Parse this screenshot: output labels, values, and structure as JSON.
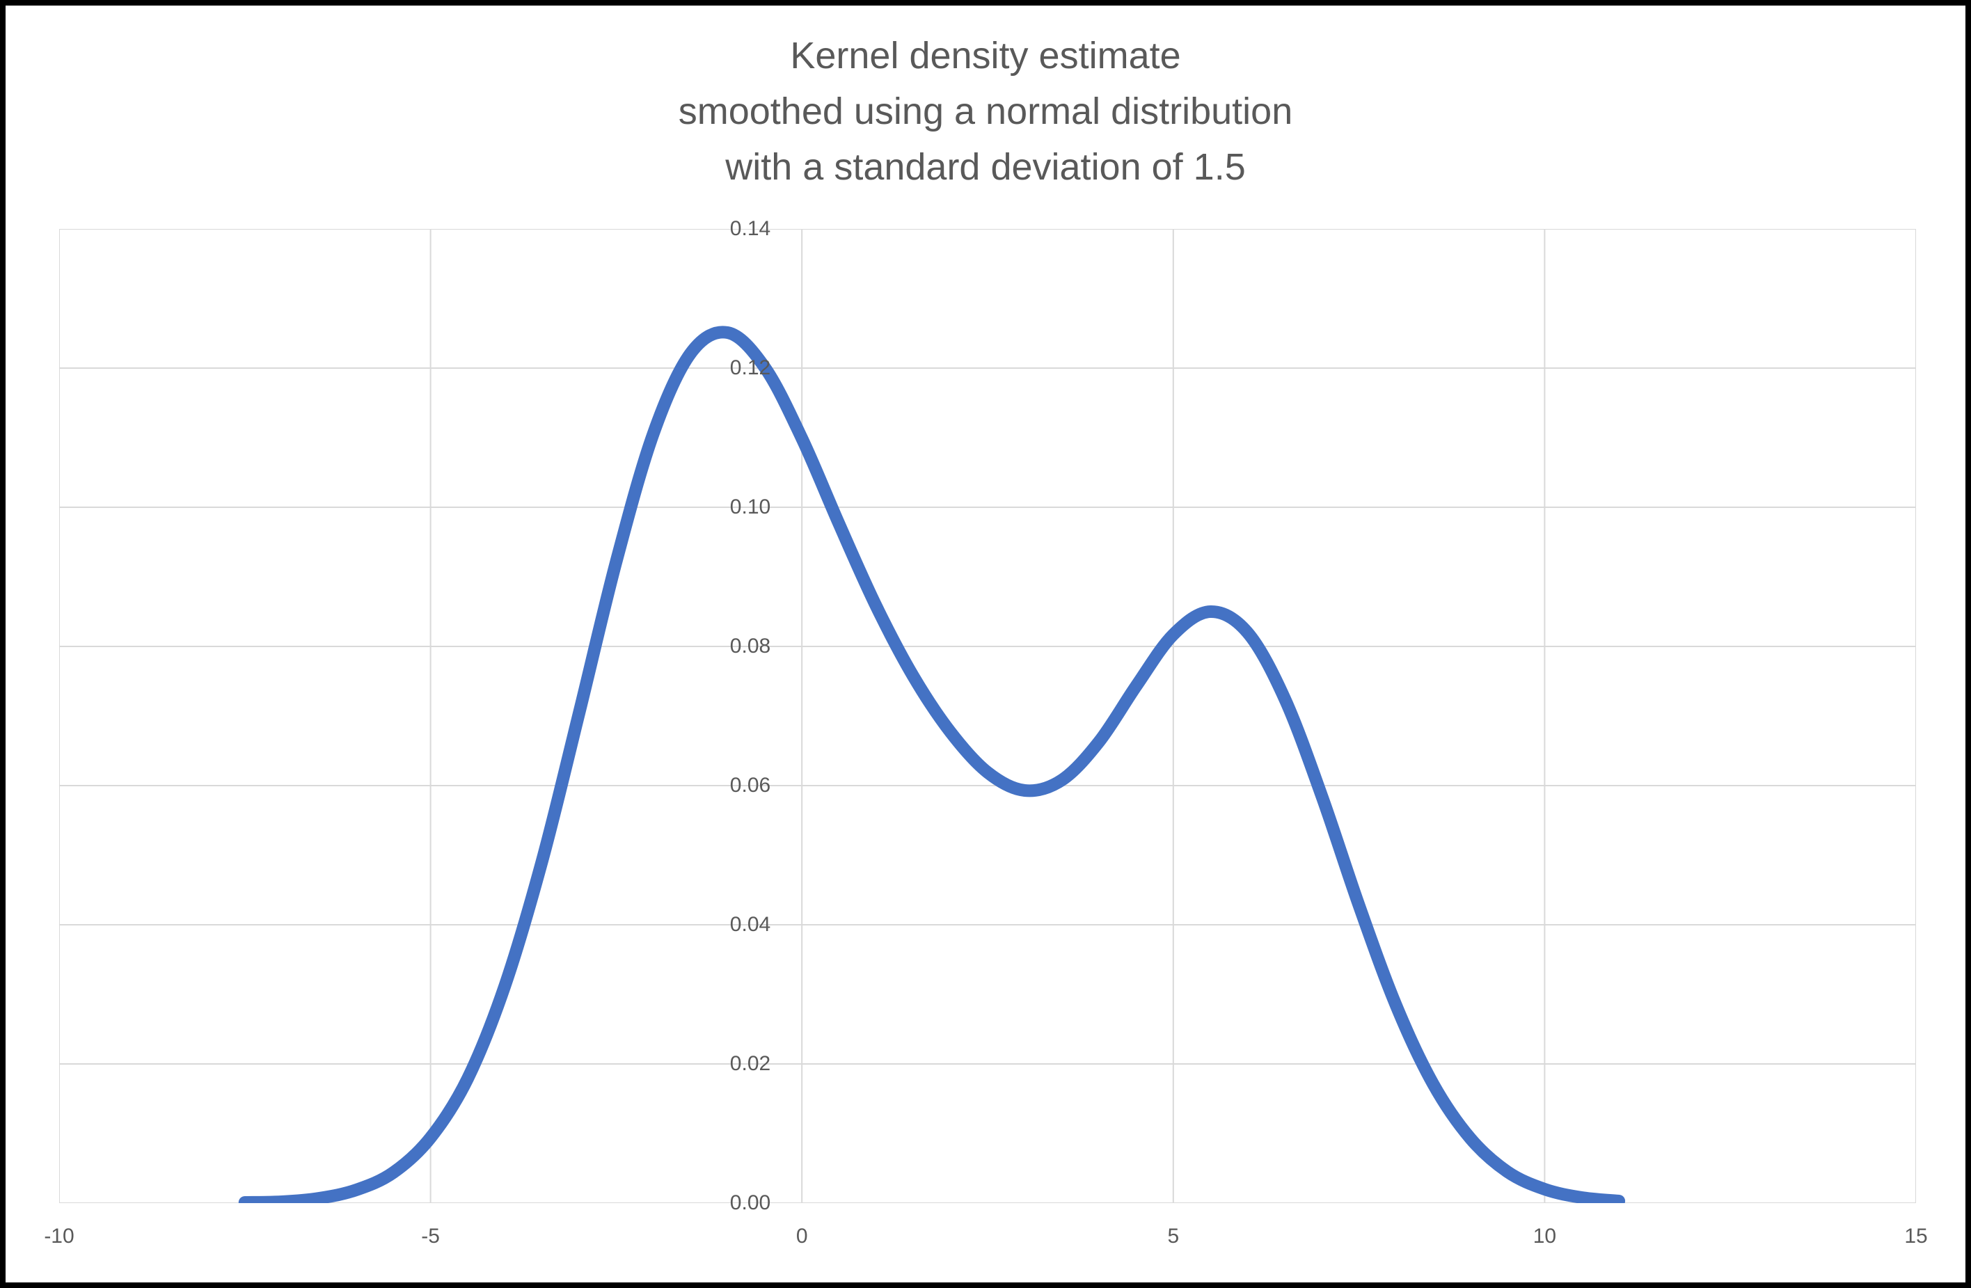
{
  "title": {
    "lines": [
      "Kernel density estimate",
      "smoothed using a normal distribution",
      "with a standard deviation of 1.5"
    ]
  },
  "chart_data": {
    "type": "line",
    "title": "Kernel density estimate smoothed using a normal distribution with a standard deviation of 1.5",
    "xlabel": "",
    "ylabel": "",
    "xlim": [
      -10,
      15
    ],
    "ylim": [
      0,
      0.14
    ],
    "grid": true,
    "legend": "none",
    "x": [
      -7.5,
      -7,
      -6.5,
      -6,
      -5.5,
      -5,
      -4.5,
      -4,
      -3.5,
      -3,
      -2.5,
      -2,
      -1.5,
      -1,
      -0.5,
      0,
      0.5,
      1,
      1.5,
      2,
      2.5,
      3,
      3.5,
      4,
      4.5,
      5,
      5.5,
      6,
      6.5,
      7,
      7.5,
      8,
      8.5,
      9,
      9.5,
      10,
      10.5,
      11
    ],
    "series": [
      {
        "name": "Kernel density estimate",
        "values": [
          0.0001,
          0.0002,
          0.0007,
          0.0019,
          0.0044,
          0.0094,
          0.0179,
          0.0312,
          0.0491,
          0.0704,
          0.0922,
          0.1106,
          0.1221,
          0.1251,
          0.1201,
          0.1099,
          0.0976,
          0.0858,
          0.0757,
          0.0677,
          0.0619,
          0.0593,
          0.0608,
          0.0663,
          0.0743,
          0.0817,
          0.085,
          0.082,
          0.0725,
          0.0585,
          0.0428,
          0.0284,
          0.0171,
          0.0093,
          0.0045,
          0.002,
          0.0008,
          0.0003
        ]
      }
    ],
    "x_ticks": [
      {
        "v": -10,
        "label": "-10"
      },
      {
        "v": -5,
        "label": "-5"
      },
      {
        "v": 0,
        "label": "0"
      },
      {
        "v": 5,
        "label": "5"
      },
      {
        "v": 10,
        "label": "10"
      },
      {
        "v": 15,
        "label": "15"
      }
    ],
    "y_ticks": [
      {
        "v": 0.0,
        "label": "0.00"
      },
      {
        "v": 0.02,
        "label": "0.02"
      },
      {
        "v": 0.04,
        "label": "0.04"
      },
      {
        "v": 0.06,
        "label": "0.06"
      },
      {
        "v": 0.08,
        "label": "0.08"
      },
      {
        "v": 0.1,
        "label": "0.10"
      },
      {
        "v": 0.12,
        "label": "0.12"
      },
      {
        "v": 0.14,
        "label": "0.14"
      }
    ],
    "colors": {
      "line": "#4472C4",
      "gridline": "#D9D9D9",
      "tick_label": "#595959",
      "title": "#595959",
      "background": "#FFFFFF",
      "frame": "#000000"
    }
  }
}
